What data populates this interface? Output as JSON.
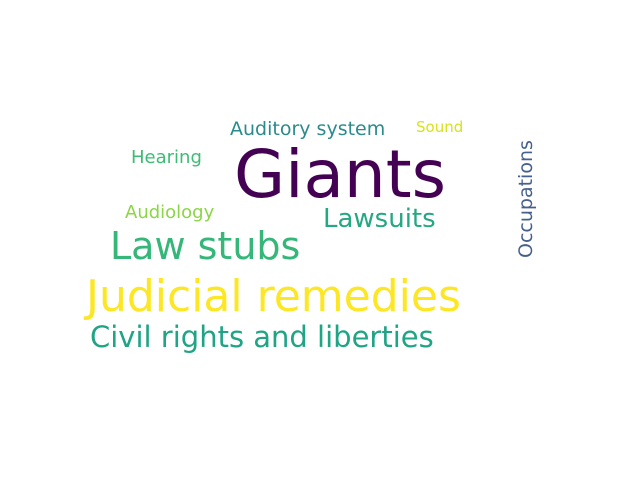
{
  "words": [
    {
      "id": "giants",
      "text": "Giants",
      "color": "#440154",
      "weight": 1.0
    },
    {
      "id": "judicial-remedies",
      "text": "Judicial remedies",
      "color": "#fde725",
      "weight": 0.8
    },
    {
      "id": "law-stubs",
      "text": "Law stubs",
      "color": "#35b779",
      "weight": 0.6
    },
    {
      "id": "civil-rights",
      "text": "Civil rights and liberties",
      "color": "#20a486",
      "weight": 0.45
    },
    {
      "id": "lawsuits",
      "text": "Lawsuits",
      "color": "#26a784",
      "weight": 0.4
    },
    {
      "id": "occupations",
      "text": "Occupations",
      "color": "#46608e",
      "weight": 0.35,
      "vertical": true
    },
    {
      "id": "auditory-system",
      "text": "Auditory system",
      "color": "#2a8a8c",
      "weight": 0.3
    },
    {
      "id": "hearing",
      "text": "Hearing",
      "color": "#3dbc74",
      "weight": 0.28
    },
    {
      "id": "audiology",
      "text": "Audiology",
      "color": "#8bd646",
      "weight": 0.27
    },
    {
      "id": "sound",
      "text": "Sound",
      "color": "#d8e219",
      "weight": 0.2
    }
  ]
}
